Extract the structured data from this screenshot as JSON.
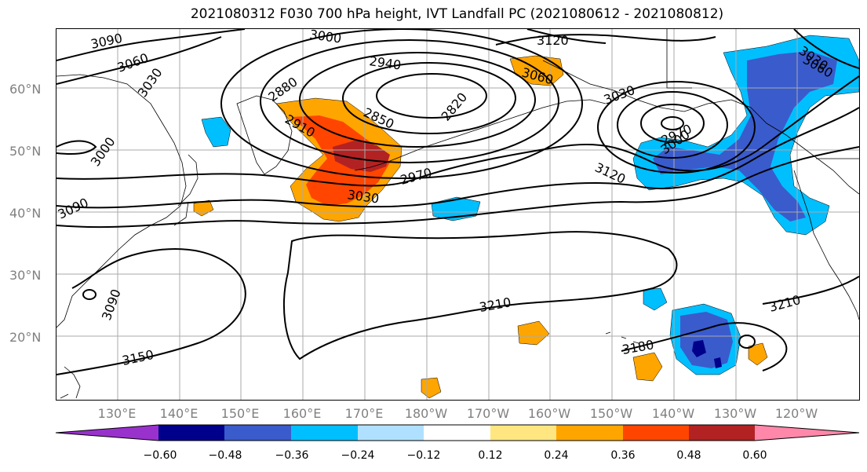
{
  "title": "2021080312 F030 700 hPa height, IVT Landfall PC (2021080612 - 2021080812)",
  "map": {
    "lat_labels": [
      "60°N",
      "50°N",
      "40°N",
      "30°N",
      "20°N"
    ],
    "lon_labels": [
      "130°E",
      "140°E",
      "150°E",
      "160°E",
      "170°E",
      "180°W",
      "170°W",
      "160°W",
      "150°W",
      "140°W",
      "130°W",
      "120°W"
    ],
    "contour_labels": [
      "3090",
      "3000",
      "3120",
      "3060",
      "2940",
      "3060",
      "3030",
      "2880",
      "2820",
      "3030",
      "2850",
      "2910",
      "3000",
      "3000",
      "2970",
      "3120",
      "2970",
      "3030",
      "3090",
      "3090",
      "3210",
      "3210",
      "3150",
      "3180",
      "3030",
      "3060"
    ],
    "colors": {
      "neg_060": "#9932CC",
      "neg_048": "#00008B",
      "neg_036": "#3A5BCC",
      "neg_024": "#00BFFF",
      "neg_012": "#B0E0FF",
      "neutral": "#FFFFFF",
      "pos_012": "#FFE680",
      "pos_024": "#FFA500",
      "pos_036": "#FF4500",
      "pos_048": "#B22222",
      "pos_060": "#FF88AA"
    }
  },
  "colorbar": {
    "ticks": [
      "−0.60",
      "−0.48",
      "−0.36",
      "−0.24",
      "−0.12",
      "0.12",
      "0.24",
      "0.36",
      "0.48",
      "0.60"
    ],
    "colors": [
      "#9932CC",
      "#00008B",
      "#3A5BCC",
      "#00BFFF",
      "#B0E0FF",
      "#FFFFFF",
      "#FFE680",
      "#FFA500",
      "#FF4500",
      "#B22222",
      "#FF88AA"
    ]
  }
}
